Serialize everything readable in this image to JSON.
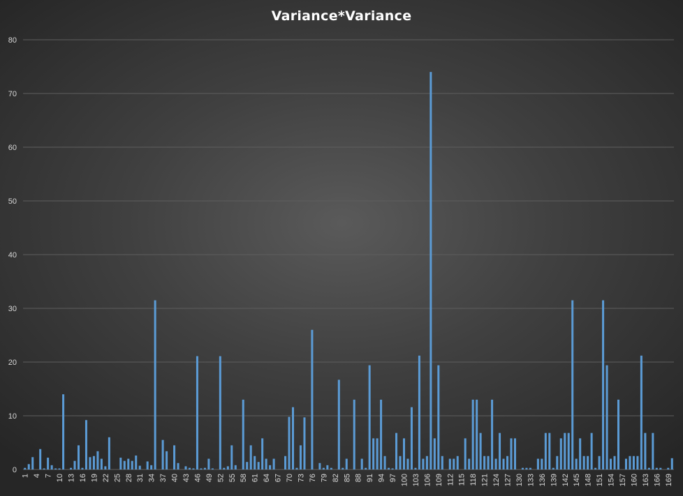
{
  "chart_data": {
    "type": "bar",
    "title": "Variance*Variance",
    "xlabel": "",
    "ylabel": "",
    "ylim": [
      0,
      80
    ],
    "yticks": [
      0,
      10,
      20,
      30,
      40,
      50,
      60,
      70,
      80
    ],
    "grid": true,
    "legend": "none",
    "bar_color": "#5b9bd5",
    "categories_range": [
      1,
      170
    ],
    "tick_labels": [
      "1",
      "4",
      "7",
      "10",
      "13",
      "16",
      "19",
      "22",
      "25",
      "28",
      "31",
      "34",
      "37",
      "40",
      "43",
      "46",
      "49",
      "52",
      "55",
      "58",
      "61",
      "64",
      "67",
      "70",
      "73",
      "76",
      "79",
      "82",
      "85",
      "88",
      "91",
      "94",
      "97",
      "100",
      "103",
      "106",
      "109",
      "112",
      "115",
      "118",
      "121",
      "124",
      "127",
      "130",
      "133",
      "136",
      "139",
      "142",
      "145",
      "148",
      "151",
      "154",
      "157",
      "160",
      "163",
      "166",
      "169"
    ],
    "values": [
      0.3,
      1.0,
      2.3,
      0,
      3.8,
      0.2,
      2.2,
      0.8,
      0.2,
      0.2,
      14.0,
      0,
      0.3,
      1.6,
      4.5,
      0.3,
      9.2,
      2.3,
      2.5,
      3.4,
      2.0,
      0.6,
      6.0,
      0,
      0,
      2.2,
      1.6,
      2.0,
      1.6,
      2.6,
      0.7,
      0,
      1.5,
      0.8,
      31.5,
      0,
      5.5,
      3.4,
      0,
      4.5,
      1.2,
      0,
      0.6,
      0.3,
      0.2,
      21.1,
      0.2,
      0.3,
      2.0,
      0.2,
      0,
      21.1,
      0.3,
      0.6,
      4.5,
      0.8,
      0,
      13.0,
      1.4,
      4.5,
      2.5,
      1.4,
      5.8,
      2.0,
      0.8,
      2.0,
      0,
      0,
      2.5,
      9.8,
      11.6,
      0.3,
      4.5,
      9.7,
      0,
      26.0,
      0,
      1.2,
      0.3,
      0.8,
      0.3,
      0,
      16.7,
      0.3,
      2.0,
      0,
      13.0,
      0,
      2.0,
      0.3,
      19.4,
      5.8,
      5.8,
      13.0,
      2.5,
      0.3,
      0.2,
      6.8,
      2.5,
      5.8,
      2.0,
      11.6,
      0.3,
      21.2,
      2.0,
      2.5,
      74.0,
      5.8,
      19.4,
      2.5,
      0,
      2.0,
      2.0,
      2.5,
      0,
      5.8,
      2.0,
      13.0,
      13.0,
      6.8,
      2.5,
      2.5,
      13.0,
      2.0,
      6.8,
      2.0,
      2.5,
      5.8,
      5.8,
      0,
      0.3,
      0.3,
      0.3,
      0,
      2.0,
      2.0,
      6.8,
      6.8,
      0.3,
      2.5,
      5.8,
      6.8,
      6.8,
      31.5,
      2.0,
      5.8,
      2.5,
      2.5,
      6.8,
      0.3,
      2.5,
      31.5,
      19.4,
      2.0,
      2.5,
      13.0,
      0,
      2.0,
      2.5,
      2.5,
      2.5,
      21.2,
      6.8,
      0.3,
      6.8,
      0.3,
      0.3,
      0,
      0.3,
      2.1
    ]
  }
}
